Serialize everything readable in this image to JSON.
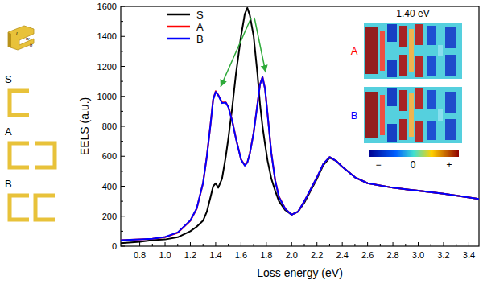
{
  "chart_data": {
    "type": "line",
    "x_label": "Loss energy (eV)",
    "y_label": "EELS (a.u.)",
    "x": [
      0.65,
      0.8,
      0.9,
      1.0,
      1.1,
      1.2,
      1.25,
      1.3,
      1.33,
      1.36,
      1.38,
      1.4,
      1.42,
      1.45,
      1.48,
      1.5,
      1.53,
      1.56,
      1.6,
      1.63,
      1.65,
      1.67,
      1.7,
      1.73,
      1.75,
      1.77,
      1.79,
      1.81,
      1.84,
      1.87,
      1.9,
      1.95,
      2.0,
      2.05,
      2.1,
      2.15,
      2.2,
      2.25,
      2.3,
      2.35,
      2.4,
      2.5,
      2.6,
      2.8,
      3.0,
      3.2,
      3.48
    ],
    "series": [
      {
        "name": "S",
        "color": "#000000",
        "values": [
          20,
          30,
          40,
          45,
          60,
          100,
          130,
          170,
          230,
          330,
          400,
          420,
          390,
          450,
          600,
          720,
          920,
          1150,
          1400,
          1550,
          1590,
          1540,
          1400,
          1150,
          950,
          800,
          680,
          570,
          450,
          370,
          300,
          240,
          210,
          230,
          290,
          370,
          450,
          540,
          590,
          570,
          530,
          460,
          420,
          390,
          370,
          350,
          315
        ]
      },
      {
        "name": "A",
        "color": "#ff0000",
        "values": [
          40,
          45,
          50,
          60,
          90,
          170,
          250,
          420,
          600,
          820,
          980,
          1035,
          1010,
          960,
          960,
          930,
          840,
          720,
          580,
          540,
          560,
          620,
          760,
          950,
          1080,
          1130,
          1050,
          880,
          620,
          440,
          330,
          250,
          210,
          230,
          300,
          380,
          460,
          550,
          595,
          570,
          530,
          460,
          420,
          390,
          370,
          350,
          315
        ]
      },
      {
        "name": "B",
        "color": "#0000ff",
        "values": [
          40,
          46,
          50,
          62,
          92,
          172,
          252,
          422,
          598,
          818,
          978,
          1030,
          1008,
          955,
          958,
          928,
          838,
          718,
          578,
          538,
          558,
          618,
          758,
          948,
          1078,
          1128,
          1048,
          878,
          618,
          438,
          328,
          248,
          210,
          230,
          300,
          380,
          460,
          550,
          595,
          570,
          530,
          460,
          420,
          390,
          370,
          350,
          315
        ]
      }
    ],
    "xlim": [
      0.65,
      3.48
    ],
    "xticks": [
      0.8,
      {
        "value": 1,
        "label": "1.0"
      },
      1.2,
      1.4,
      1.6,
      1.8,
      {
        "value": 2,
        "label": "2.0"
      },
      2.2,
      2.4,
      2.6,
      2.8,
      {
        "value": 3,
        "label": "3.0"
      },
      3.2,
      3.4
    ],
    "ylim": [
      0,
      1600
    ],
    "yticks": [
      0,
      200,
      400,
      600,
      800,
      1000,
      1200,
      1400,
      1600
    ],
    "legend": "top-left",
    "annotations": {
      "structure_labels": [
        "S",
        "A",
        "B"
      ],
      "dimension_labels": [
        "l",
        "w",
        "h"
      ],
      "map_title": "1.40 eV",
      "map_labels": [
        "A",
        "B"
      ],
      "colorbar_labels": [
        "−",
        "0",
        "+"
      ]
    }
  }
}
